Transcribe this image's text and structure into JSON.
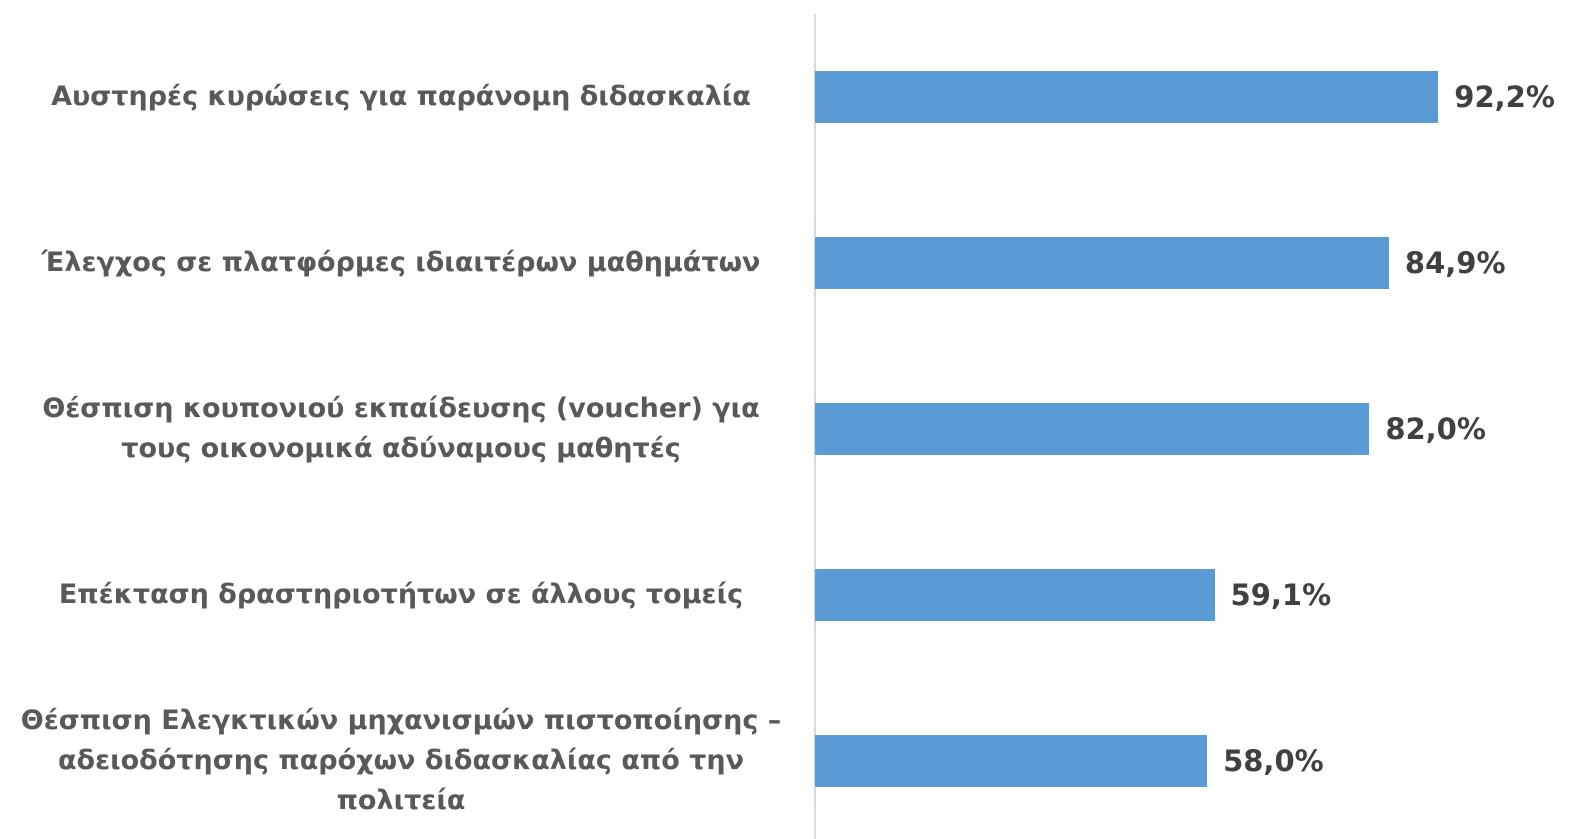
{
  "chart_data": {
    "type": "barh",
    "categories": [
      "Αυστηρές κυρώσεις για παράνομη διδασκαλία",
      "Έλεγχος σε πλατφόρμες ιδιαιτέρων μαθημάτων",
      "Θέσπιση κουπονιού εκπαίδευσης (voucher) για τους οικονομικά αδύναμους μαθητές",
      "Επέκταση δραστηριοτήτων σε άλλους τομείς",
      "Θέσπιση Ελεγκτικών μηχανισμών πιστοποίησης – αδειοδότησης παρόχων διδασκαλίας από την πολιτεία"
    ],
    "values": [
      92.2,
      84.9,
      82.0,
      59.1,
      58.0
    ],
    "value_labels": [
      "92,2%",
      "84,9%",
      "82,0%",
      "59,1%",
      "58,0%"
    ],
    "color": "#5b9bd5",
    "xlim": [
      0,
      100
    ]
  }
}
